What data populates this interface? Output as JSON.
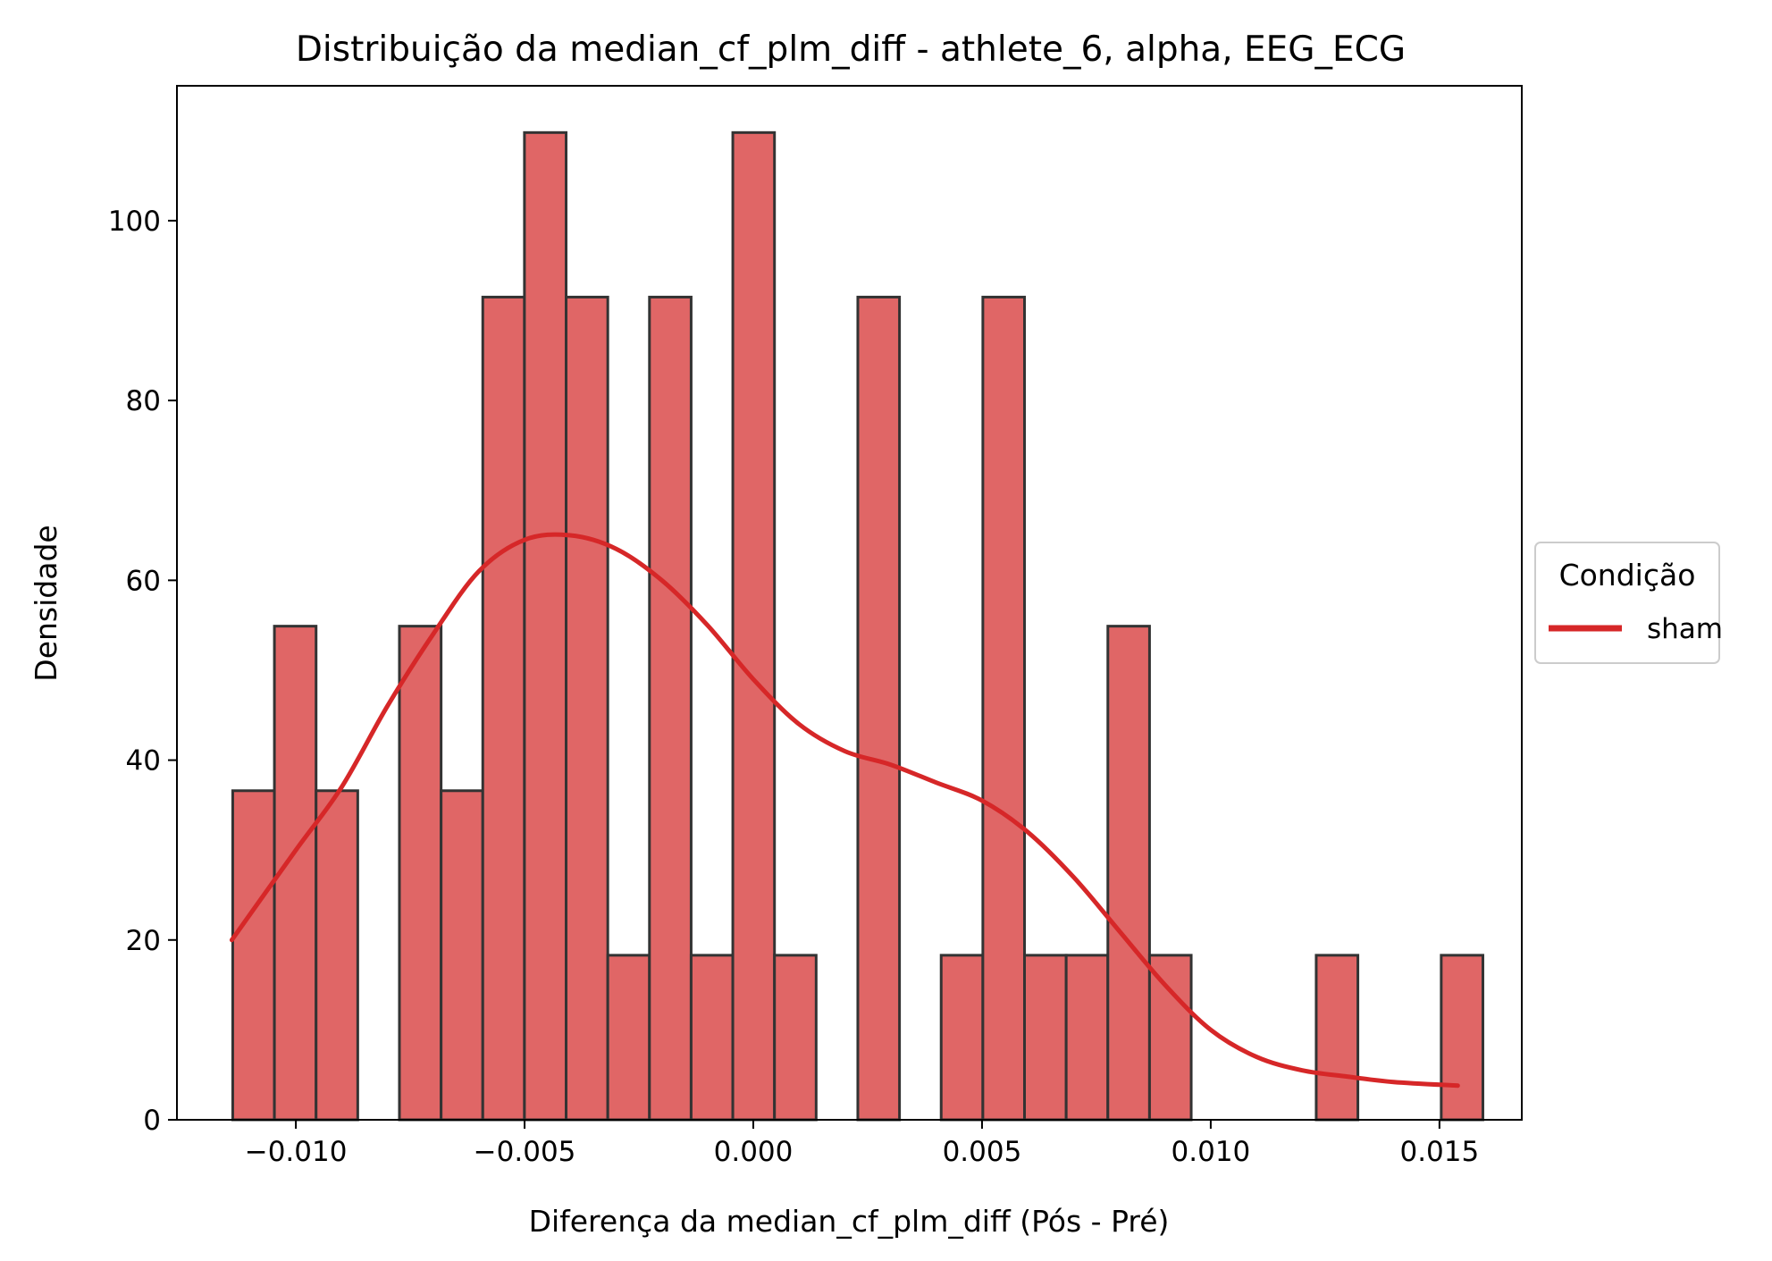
{
  "chart_data": {
    "type": "bar",
    "subtype": "histogram_with_kde",
    "title": "Distribuição da median_cf_plm_diff - athlete_6, alpha, EEG_ECG",
    "xlabel": "Diferença da median_cf_plm_diff (Pós - Pré)",
    "ylabel": "Densidade",
    "xlim": [
      -0.0126,
      0.0168
    ],
    "ylim": [
      0,
      115
    ],
    "xticks": [
      -0.01,
      -0.005,
      0.0,
      0.005,
      0.01,
      0.015
    ],
    "xtick_labels": [
      "−0.010",
      "−0.005",
      "0.000",
      "0.005",
      "0.010",
      "0.015"
    ],
    "yticks": [
      0,
      20,
      40,
      60,
      80,
      100
    ],
    "ytick_labels": [
      "0",
      "20",
      "40",
      "60",
      "80",
      "100"
    ],
    "grid": false,
    "bar_color": "#e06666",
    "bar_edge_color": "#333333",
    "kde_color": "#d62728",
    "bins": {
      "start": -0.01138,
      "width": 0.000911,
      "values": [
        36.6,
        54.9,
        36.6,
        0,
        54.9,
        36.6,
        91.5,
        109.8,
        91.5,
        18.3,
        91.5,
        18.3,
        109.8,
        18.3,
        0,
        91.5,
        0,
        18.3,
        91.5,
        18.3,
        18.3,
        54.9,
        18.3,
        0,
        0,
        0,
        18.3,
        0,
        0,
        18.3
      ]
    },
    "series": [
      {
        "name": "sham",
        "kind": "kde",
        "x": [
          -0.0114,
          -0.01,
          -0.009,
          -0.008,
          -0.007,
          -0.006,
          -0.005,
          -0.004,
          -0.003,
          -0.002,
          -0.001,
          0.0,
          0.001,
          0.002,
          0.003,
          0.004,
          0.005,
          0.006,
          0.007,
          0.008,
          0.009,
          0.01,
          0.011,
          0.012,
          0.013,
          0.014,
          0.0154
        ],
        "y": [
          20,
          30,
          37,
          46,
          54,
          61,
          64.5,
          65,
          63.5,
          60,
          55,
          49,
          44,
          41,
          39.5,
          37.5,
          35.5,
          32,
          27,
          21,
          15,
          10,
          7,
          5.5,
          4.8,
          4.2,
          3.8
        ]
      }
    ],
    "legend": {
      "title": "Condição",
      "position": "right",
      "entries": [
        "sham"
      ]
    }
  }
}
